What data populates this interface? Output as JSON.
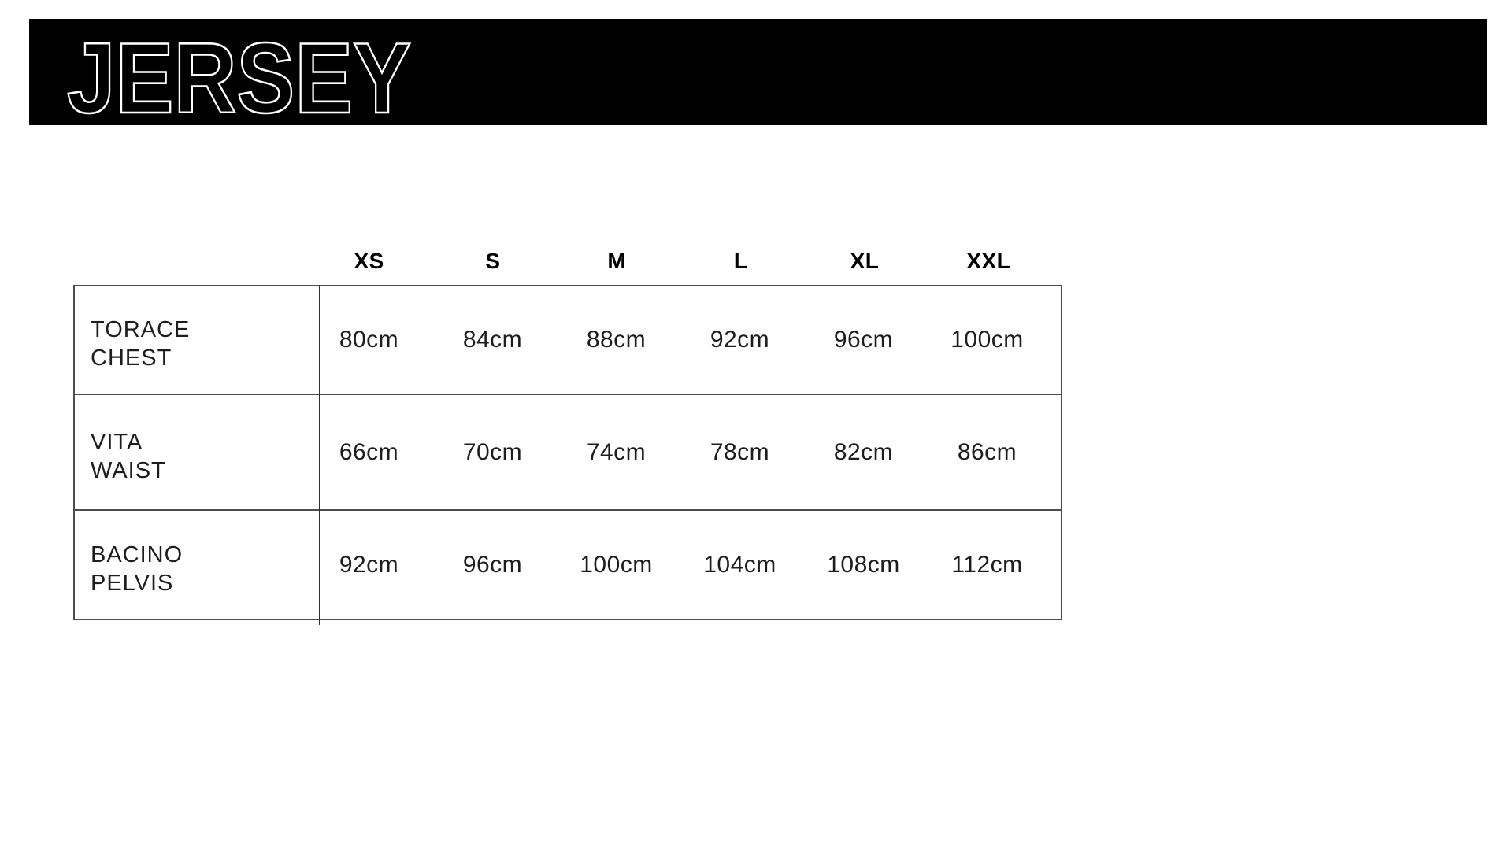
{
  "banner": {
    "title": "JERSEY",
    "background": "#000000",
    "outline_color": "#ffffff"
  },
  "table": {
    "columns": [
      "XS",
      "S",
      "M",
      "L",
      "XL",
      "XXL"
    ],
    "rows": [
      {
        "label_it": "TORACE",
        "label_en": "CHEST",
        "values": [
          "80cm",
          "84cm",
          "88cm",
          "92cm",
          "96cm",
          "100cm"
        ]
      },
      {
        "label_it": "VITA",
        "label_en": "WAIST",
        "values": [
          "66cm",
          "70cm",
          "74cm",
          "78cm",
          "82cm",
          "86cm"
        ]
      },
      {
        "label_it": "BACINO",
        "label_en": "PELVIS",
        "values": [
          "92cm",
          "96cm",
          "100cm",
          "104cm",
          "108cm",
          "112cm"
        ]
      }
    ]
  },
  "colors": {
    "border": "#4d4d4d",
    "divider": "#2e2e2e",
    "text": "#1d1d1d",
    "header_text": "#000000",
    "page_background": "#ffffff"
  }
}
